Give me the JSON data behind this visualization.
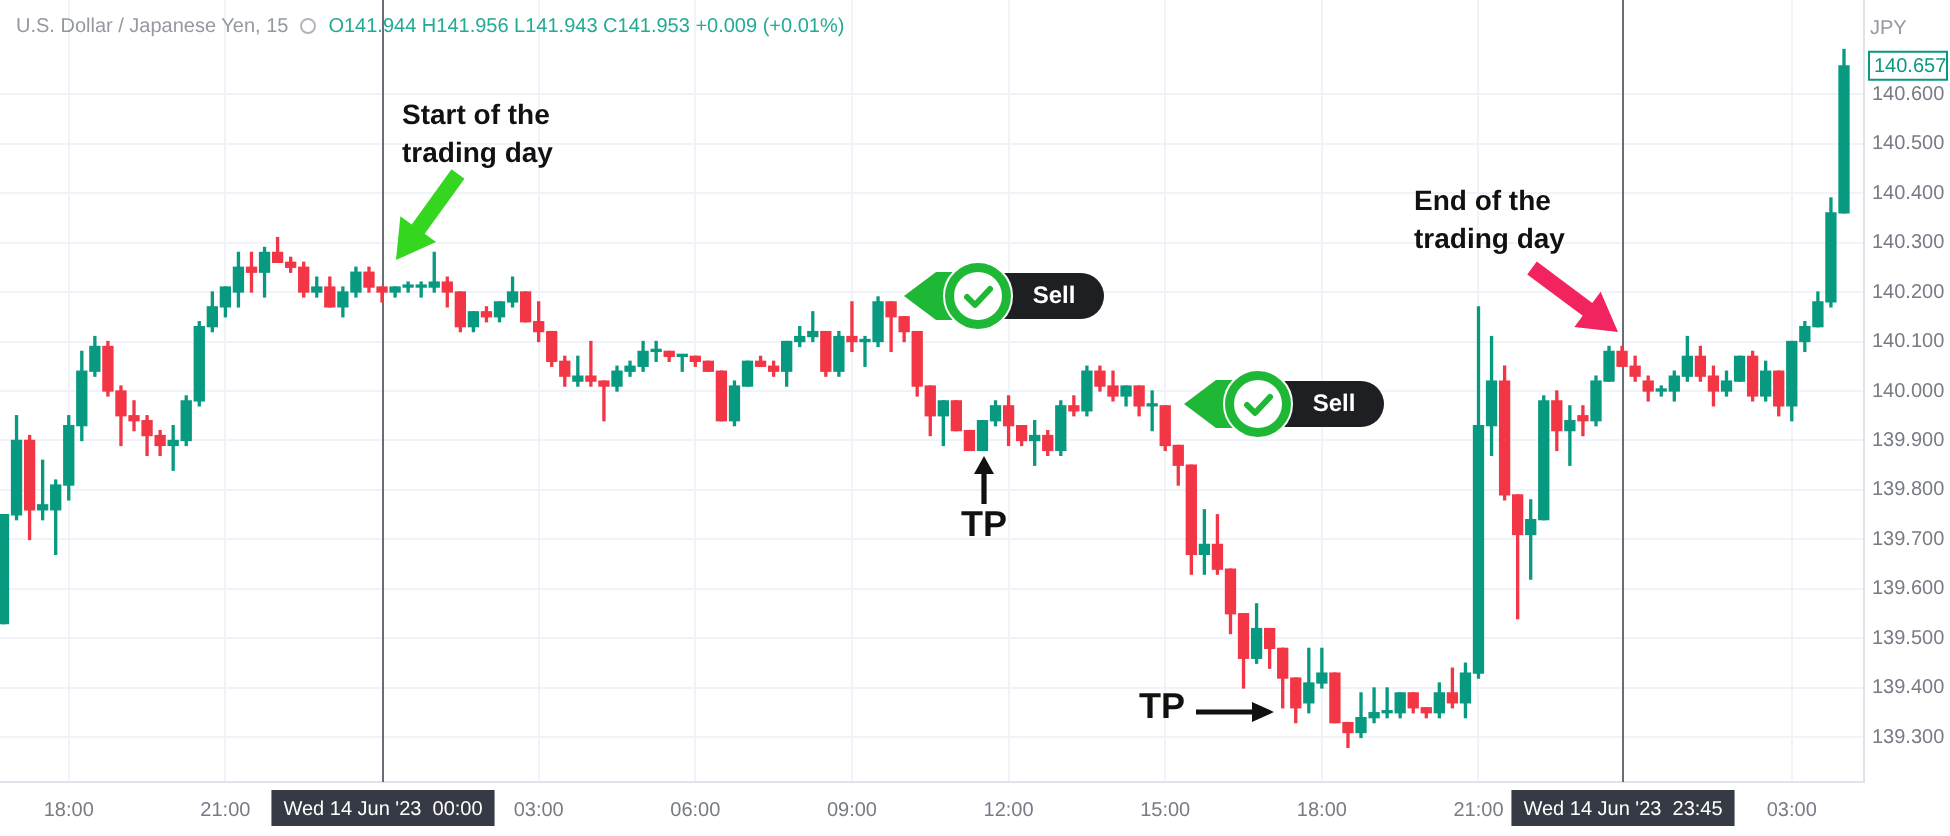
{
  "chart_data": {
    "type": "candlestick",
    "title": "U.S. Dollar / Japanese Yen, 15",
    "subtitle": "O141.944 H141.956 L141.943 C141.953 +0.009 (+0.01%)",
    "ylabel": "JPY",
    "x": [
      "2023-06-13T16:45",
      "2023-06-13T17:00",
      "2023-06-13T17:15",
      "2023-06-13T17:30",
      "2023-06-13T17:45",
      "2023-06-13T18:00",
      "2023-06-13T18:15",
      "2023-06-13T18:30",
      "2023-06-13T18:45",
      "2023-06-13T19:00",
      "2023-06-13T19:15",
      "2023-06-13T19:30",
      "2023-06-13T19:45",
      "2023-06-13T20:00",
      "2023-06-13T20:15",
      "2023-06-13T20:30",
      "2023-06-13T20:45",
      "2023-06-13T21:00",
      "2023-06-13T21:15",
      "2023-06-13T21:30",
      "2023-06-13T21:45",
      "2023-06-13T22:00",
      "2023-06-13T22:15",
      "2023-06-13T22:30",
      "2023-06-13T22:45",
      "2023-06-13T23:00",
      "2023-06-13T23:15",
      "2023-06-13T23:30",
      "2023-06-13T23:45",
      "2023-06-14T00:00",
      "2023-06-14T00:15",
      "2023-06-14T00:30",
      "2023-06-14T00:45",
      "2023-06-14T01:00",
      "2023-06-14T01:15",
      "2023-06-14T01:30",
      "2023-06-14T01:45",
      "2023-06-14T02:00",
      "2023-06-14T02:15",
      "2023-06-14T02:30",
      "2023-06-14T02:45",
      "2023-06-14T03:00",
      "2023-06-14T03:15",
      "2023-06-14T03:30",
      "2023-06-14T03:45",
      "2023-06-14T04:00",
      "2023-06-14T04:15",
      "2023-06-14T04:30",
      "2023-06-14T04:45",
      "2023-06-14T05:00",
      "2023-06-14T05:15",
      "2023-06-14T05:30",
      "2023-06-14T05:45",
      "2023-06-14T06:00",
      "2023-06-14T06:15",
      "2023-06-14T06:30",
      "2023-06-14T06:45",
      "2023-06-14T07:00",
      "2023-06-14T07:15",
      "2023-06-14T07:30",
      "2023-06-14T07:45",
      "2023-06-14T08:00",
      "2023-06-14T08:15",
      "2023-06-14T08:30",
      "2023-06-14T08:45",
      "2023-06-14T09:00",
      "2023-06-14T09:15",
      "2023-06-14T09:30",
      "2023-06-14T09:45",
      "2023-06-14T10:00",
      "2023-06-14T10:15",
      "2023-06-14T10:30",
      "2023-06-14T10:45",
      "2023-06-14T11:00",
      "2023-06-14T11:15",
      "2023-06-14T11:30",
      "2023-06-14T11:45",
      "2023-06-14T12:00",
      "2023-06-14T12:15",
      "2023-06-14T12:30",
      "2023-06-14T12:45",
      "2023-06-14T13:00",
      "2023-06-14T13:15",
      "2023-06-14T13:30",
      "2023-06-14T13:45",
      "2023-06-14T14:00",
      "2023-06-14T14:15",
      "2023-06-14T14:30",
      "2023-06-14T14:45",
      "2023-06-14T15:00",
      "2023-06-14T15:15",
      "2023-06-14T15:30",
      "2023-06-14T15:45",
      "2023-06-14T16:00",
      "2023-06-14T16:15",
      "2023-06-14T16:30",
      "2023-06-14T16:45",
      "2023-06-14T17:00",
      "2023-06-14T17:15",
      "2023-06-14T17:30",
      "2023-06-14T17:45",
      "2023-06-14T18:00",
      "2023-06-14T18:15",
      "2023-06-14T18:30",
      "2023-06-14T18:45",
      "2023-06-14T19:00",
      "2023-06-14T19:15",
      "2023-06-14T19:30",
      "2023-06-14T19:45",
      "2023-06-14T20:00",
      "2023-06-14T20:15",
      "2023-06-14T20:30",
      "2023-06-14T20:45",
      "2023-06-14T21:00",
      "2023-06-14T21:15",
      "2023-06-14T21:30",
      "2023-06-14T21:45",
      "2023-06-14T22:00",
      "2023-06-14T22:15",
      "2023-06-14T22:30",
      "2023-06-14T22:45",
      "2023-06-14T23:00",
      "2023-06-14T23:15",
      "2023-06-14T23:30",
      "2023-06-14T23:45",
      "2023-06-15T00:00",
      "2023-06-15T00:15",
      "2023-06-15T00:30",
      "2023-06-15T00:45",
      "2023-06-15T01:00",
      "2023-06-15T01:15",
      "2023-06-15T01:30",
      "2023-06-15T01:45",
      "2023-06-15T02:00",
      "2023-06-15T02:15",
      "2023-06-15T02:30",
      "2023-06-15T02:45",
      "2023-06-15T03:00",
      "2023-06-15T03:15",
      "2023-06-15T03:30",
      "2023-06-15T03:45",
      "2023-06-15T04:00"
    ],
    "ohlc": [
      [
        139.53,
        139.75,
        139.53,
        139.75
      ],
      [
        139.75,
        139.95,
        139.74,
        139.9
      ],
      [
        139.9,
        139.91,
        139.7,
        139.76
      ],
      [
        139.76,
        139.86,
        139.74,
        139.77
      ],
      [
        139.76,
        139.82,
        139.67,
        139.81
      ],
      [
        139.81,
        139.95,
        139.78,
        139.93
      ],
      [
        139.93,
        140.08,
        139.9,
        140.04
      ],
      [
        140.04,
        140.11,
        140.03,
        140.09
      ],
      [
        140.09,
        140.1,
        139.99,
        140.0
      ],
      [
        140.0,
        140.01,
        139.89,
        139.95
      ],
      [
        139.95,
        139.98,
        139.92,
        139.94
      ],
      [
        139.94,
        139.95,
        139.87,
        139.91
      ],
      [
        139.91,
        139.92,
        139.87,
        139.89
      ],
      [
        139.89,
        139.93,
        139.84,
        139.9
      ],
      [
        139.9,
        139.99,
        139.89,
        139.98
      ],
      [
        139.98,
        140.14,
        139.97,
        140.13
      ],
      [
        140.13,
        140.2,
        140.12,
        140.17
      ],
      [
        140.17,
        140.21,
        140.15,
        140.21
      ],
      [
        140.2,
        140.28,
        140.17,
        140.25
      ],
      [
        140.25,
        140.28,
        140.2,
        140.24
      ],
      [
        140.24,
        140.29,
        140.19,
        140.28
      ],
      [
        140.28,
        140.31,
        140.26,
        140.26
      ],
      [
        140.26,
        140.27,
        140.24,
        140.25
      ],
      [
        140.25,
        140.26,
        140.19,
        140.2
      ],
      [
        140.2,
        140.23,
        140.19,
        140.21
      ],
      [
        140.21,
        140.23,
        140.17,
        140.17
      ],
      [
        140.17,
        140.21,
        140.15,
        140.2
      ],
      [
        140.2,
        140.25,
        140.19,
        140.24
      ],
      [
        140.24,
        140.25,
        140.2,
        140.21
      ],
      [
        140.21,
        140.21,
        140.18,
        140.2
      ],
      [
        140.2,
        140.21,
        140.19,
        140.21
      ],
      [
        140.21,
        140.22,
        140.2,
        140.21
      ],
      [
        140.21,
        140.22,
        140.19,
        140.21
      ],
      [
        140.21,
        140.28,
        140.2,
        140.22
      ],
      [
        140.22,
        140.23,
        140.17,
        140.2
      ],
      [
        140.2,
        140.2,
        140.12,
        140.13
      ],
      [
        140.13,
        140.16,
        140.12,
        140.16
      ],
      [
        140.16,
        140.17,
        140.14,
        140.15
      ],
      [
        140.15,
        140.18,
        140.14,
        140.18
      ],
      [
        140.18,
        140.23,
        140.17,
        140.2
      ],
      [
        140.2,
        140.2,
        140.14,
        140.14
      ],
      [
        140.14,
        140.18,
        140.1,
        140.12
      ],
      [
        140.12,
        140.12,
        140.05,
        140.06
      ],
      [
        140.06,
        140.07,
        140.01,
        140.03
      ],
      [
        140.02,
        140.07,
        140.01,
        140.03
      ],
      [
        140.03,
        140.1,
        140.01,
        140.02
      ],
      [
        140.02,
        140.02,
        139.94,
        140.01
      ],
      [
        140.01,
        140.05,
        140.0,
        140.04
      ],
      [
        140.04,
        140.06,
        140.03,
        140.05
      ],
      [
        140.05,
        140.1,
        140.04,
        140.08
      ],
      [
        140.08,
        140.1,
        140.06,
        140.08
      ],
      [
        140.08,
        140.08,
        140.06,
        140.07
      ],
      [
        140.07,
        140.07,
        140.04,
        140.07
      ],
      [
        140.07,
        140.07,
        140.05,
        140.06
      ],
      [
        140.06,
        140.06,
        140.04,
        140.04
      ],
      [
        140.04,
        140.04,
        139.94,
        139.94
      ],
      [
        139.94,
        140.02,
        139.93,
        140.01
      ],
      [
        140.01,
        140.06,
        140.01,
        140.06
      ],
      [
        140.06,
        140.07,
        140.05,
        140.05
      ],
      [
        140.05,
        140.06,
        140.03,
        140.04
      ],
      [
        140.04,
        140.1,
        140.01,
        140.1
      ],
      [
        140.1,
        140.13,
        140.09,
        140.11
      ],
      [
        140.11,
        140.16,
        140.1,
        140.12
      ],
      [
        140.12,
        140.12,
        140.03,
        140.04
      ],
      [
        140.04,
        140.12,
        140.03,
        140.11
      ],
      [
        140.11,
        140.18,
        140.08,
        140.1
      ],
      [
        140.1,
        140.11,
        140.05,
        140.1
      ],
      [
        140.1,
        140.19,
        140.09,
        140.18
      ],
      [
        140.18,
        140.18,
        140.08,
        140.15
      ],
      [
        140.15,
        140.15,
        140.1,
        140.12
      ],
      [
        140.12,
        140.12,
        139.99,
        140.01
      ],
      [
        140.01,
        140.01,
        139.91,
        139.95
      ],
      [
        139.95,
        139.98,
        139.89,
        139.98
      ],
      [
        139.98,
        139.98,
        139.92,
        139.92
      ],
      [
        139.92,
        139.92,
        139.88,
        139.88
      ],
      [
        139.88,
        139.94,
        139.88,
        139.94
      ],
      [
        139.94,
        139.98,
        139.93,
        139.97
      ],
      [
        139.97,
        139.99,
        139.89,
        139.93
      ],
      [
        139.93,
        139.93,
        139.89,
        139.9
      ],
      [
        139.9,
        139.94,
        139.85,
        139.91
      ],
      [
        139.91,
        139.92,
        139.87,
        139.88
      ],
      [
        139.88,
        139.98,
        139.87,
        139.97
      ],
      [
        139.97,
        139.99,
        139.95,
        139.96
      ],
      [
        139.96,
        140.05,
        139.95,
        140.04
      ],
      [
        140.04,
        140.05,
        140.0,
        140.01
      ],
      [
        140.01,
        140.04,
        139.98,
        139.99
      ],
      [
        139.99,
        140.01,
        139.97,
        140.01
      ],
      [
        140.01,
        140.01,
        139.95,
        139.97
      ],
      [
        139.97,
        140.0,
        139.92,
        139.97
      ],
      [
        139.97,
        139.97,
        139.88,
        139.89
      ],
      [
        139.89,
        139.89,
        139.81,
        139.85
      ],
      [
        139.85,
        139.85,
        139.63,
        139.67
      ],
      [
        139.67,
        139.76,
        139.63,
        139.69
      ],
      [
        139.69,
        139.75,
        139.63,
        139.64
      ],
      [
        139.64,
        139.64,
        139.51,
        139.55
      ],
      [
        139.55,
        139.55,
        139.4,
        139.46
      ],
      [
        139.46,
        139.57,
        139.45,
        139.52
      ],
      [
        139.52,
        139.52,
        139.44,
        139.48
      ],
      [
        139.48,
        139.48,
        139.36,
        139.42
      ],
      [
        139.42,
        139.42,
        139.33,
        139.36
      ],
      [
        139.37,
        139.48,
        139.35,
        139.41
      ],
      [
        139.41,
        139.48,
        139.4,
        139.43
      ],
      [
        139.43,
        139.43,
        139.33,
        139.33
      ],
      [
        139.33,
        139.33,
        139.28,
        139.31
      ],
      [
        139.31,
        139.39,
        139.3,
        139.34
      ],
      [
        139.34,
        139.4,
        139.33,
        139.35
      ],
      [
        139.35,
        139.4,
        139.34,
        139.35
      ],
      [
        139.35,
        139.39,
        139.34,
        139.39
      ],
      [
        139.39,
        139.39,
        139.35,
        139.36
      ],
      [
        139.36,
        139.36,
        139.34,
        139.35
      ],
      [
        139.35,
        139.41,
        139.34,
        139.39
      ],
      [
        139.39,
        139.44,
        139.36,
        139.37
      ],
      [
        139.37,
        139.45,
        139.34,
        139.43
      ],
      [
        139.43,
        140.17,
        139.42,
        139.93
      ],
      [
        139.93,
        140.11,
        139.87,
        140.02
      ],
      [
        140.02,
        140.05,
        139.78,
        139.79
      ],
      [
        139.79,
        139.79,
        139.54,
        139.71
      ],
      [
        139.71,
        139.78,
        139.62,
        139.74
      ],
      [
        139.74,
        139.99,
        139.74,
        139.98
      ],
      [
        139.98,
        140.0,
        139.88,
        139.92
      ],
      [
        139.92,
        139.97,
        139.85,
        139.94
      ],
      [
        139.95,
        139.97,
        139.91,
        139.94
      ],
      [
        139.94,
        140.03,
        139.93,
        140.02
      ],
      [
        140.02,
        140.09,
        140.02,
        140.08
      ],
      [
        140.08,
        140.09,
        140.05,
        140.05
      ],
      [
        140.05,
        140.07,
        140.02,
        140.03
      ],
      [
        140.02,
        140.03,
        139.98,
        140.0
      ],
      [
        140.0,
        140.01,
        139.99,
        140.0
      ],
      [
        140.0,
        140.04,
        139.98,
        140.03
      ],
      [
        140.03,
        140.11,
        140.02,
        140.07
      ],
      [
        140.07,
        140.09,
        140.02,
        140.03
      ],
      [
        140.03,
        140.05,
        139.97,
        140.0
      ],
      [
        140.0,
        140.04,
        139.99,
        140.02
      ],
      [
        140.02,
        140.07,
        140.02,
        140.07
      ],
      [
        140.07,
        140.08,
        139.98,
        139.99
      ],
      [
        139.99,
        140.06,
        139.98,
        140.04
      ],
      [
        140.04,
        140.04,
        139.95,
        139.97
      ],
      [
        139.97,
        140.1,
        139.94,
        140.1
      ],
      [
        140.1,
        140.14,
        140.08,
        140.13
      ],
      [
        140.13,
        140.2,
        140.13,
        140.18
      ],
      [
        140.18,
        140.39,
        140.17,
        140.36
      ],
      [
        140.36,
        140.69,
        140.36,
        140.657
      ]
    ],
    "colors": [
      "#089981",
      "#089981",
      "#f23645",
      "#089981",
      "#089981",
      "#089981",
      "#089981",
      "#089981",
      "#f23645",
      "#f23645",
      "#f23645",
      "#f23645",
      "#f23645",
      "#089981",
      "#089981",
      "#089981",
      "#089981",
      "#089981",
      "#089981",
      "#f23645",
      "#089981",
      "#f23645",
      "#f23645",
      "#f23645",
      "#089981",
      "#f23645",
      "#089981",
      "#089981",
      "#f23645",
      "#f23645",
      "#089981",
      "#089981",
      "#089981",
      "#089981",
      "#f23645",
      "#f23645",
      "#089981",
      "#f23645",
      "#089981",
      "#089981",
      "#f23645",
      "#f23645",
      "#f23645",
      "#f23645",
      "#089981",
      "#f23645",
      "#f23645",
      "#089981",
      "#089981",
      "#089981",
      "#089981",
      "#f23645",
      "#089981",
      "#f23645",
      "#f23645",
      "#f23645",
      "#089981",
      "#089981",
      "#f23645",
      "#f23645",
      "#089981",
      "#089981",
      "#089981",
      "#f23645",
      "#089981",
      "#f23645",
      "#089981",
      "#089981",
      "#f23645",
      "#f23645",
      "#f23645",
      "#f23645",
      "#089981",
      "#f23645",
      "#f23645",
      "#089981",
      "#089981",
      "#f23645",
      "#f23645",
      "#089981",
      "#f23645",
      "#089981",
      "#f23645",
      "#089981",
      "#f23645",
      "#f23645",
      "#089981",
      "#f23645",
      "#089981",
      "#f23645",
      "#f23645",
      "#f23645",
      "#089981",
      "#f23645",
      "#f23645",
      "#f23645",
      "#089981",
      "#f23645",
      "#f23645",
      "#f23645",
      "#089981",
      "#089981",
      "#f23645",
      "#f23645",
      "#089981",
      "#089981",
      "#089981",
      "#089981",
      "#f23645",
      "#f23645",
      "#089981",
      "#f23645",
      "#089981",
      "#089981",
      "#089981",
      "#f23645",
      "#f23645",
      "#089981",
      "#089981",
      "#f23645",
      "#089981",
      "#f23645",
      "#089981",
      "#089981",
      "#f23645",
      "#f23645",
      "#f23645",
      "#089981",
      "#089981",
      "#089981",
      "#f23645",
      "#f23645",
      "#089981",
      "#089981",
      "#f23645",
      "#089981",
      "#f23645",
      "#089981",
      "#089981",
      "#089981",
      "#089981",
      "#089981"
    ],
    "xlim": [
      "2023-06-13T16:41",
      "2023-06-15T04:23"
    ],
    "xticks": [
      {
        "value": "2023-06-13T18:00",
        "label": "18:00"
      },
      {
        "value": "2023-06-13T21:00",
        "label": "21:00"
      },
      {
        "value": "2023-06-14T03:00",
        "label": "03:00"
      },
      {
        "value": "2023-06-14T06:00",
        "label": "06:00"
      },
      {
        "value": "2023-06-14T09:00",
        "label": "09:00"
      },
      {
        "value": "2023-06-14T12:00",
        "label": "12:00"
      },
      {
        "value": "2023-06-14T15:00",
        "label": "15:00"
      },
      {
        "value": "2023-06-14T18:00",
        "label": "18:00"
      },
      {
        "value": "2023-06-14T21:00",
        "label": "21:00"
      },
      {
        "value": "2023-06-15T03:00",
        "label": "03:00"
      }
    ],
    "ylim": [
      139.21,
      140.79
    ],
    "yticks": [
      {
        "value": 139.3,
        "label": "139.300"
      },
      {
        "value": 139.4,
        "label": "139.400"
      },
      {
        "value": 139.5,
        "label": "139.500"
      },
      {
        "value": 139.6,
        "label": "139.600"
      },
      {
        "value": 139.7,
        "label": "139.700"
      },
      {
        "value": 139.8,
        "label": "139.800"
      },
      {
        "value": 139.9,
        "label": "139.900"
      },
      {
        "value": 140.0,
        "label": "140.000"
      },
      {
        "value": 140.1,
        "label": "140.100"
      },
      {
        "value": 140.2,
        "label": "140.200"
      },
      {
        "value": 140.3,
        "label": "140.300"
      },
      {
        "value": 140.4,
        "label": "140.400"
      },
      {
        "value": 140.5,
        "label": "140.500"
      },
      {
        "value": 140.6,
        "label": "140.600"
      }
    ],
    "grid": true,
    "ref_lines": [
      {
        "axis": "x",
        "value": "2023-06-14T00:00",
        "label": "Wed 14 Jun '23  00:00",
        "color": "#6a6d78"
      },
      {
        "axis": "x",
        "value": "2023-06-14T23:45",
        "label": "Wed 14 Jun '23  23:45",
        "color": "#6a6d78"
      }
    ],
    "annotations": [
      "Start of the trading day",
      "Sell",
      "TP",
      "Sell",
      "TP",
      "End of the trading day",
      {
        "text": "140.657",
        "x": "2023-06-15T04:00",
        "y": 140.657
      }
    ]
  }
}
